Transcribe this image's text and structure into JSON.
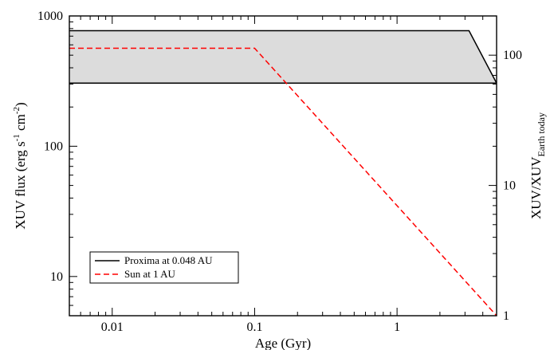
{
  "chart_data": {
    "type": "line",
    "xlabel": "Age (Gyr)",
    "ylabel": {
      "base": "XUV flux (erg s",
      "exp1": "-1",
      "mid": " cm",
      "exp2": "-2",
      "end": ")"
    },
    "ylabel_right": {
      "base": "XUV/XUV",
      "sub": "Earth today"
    },
    "x_scale": "log",
    "y_scale": "log",
    "xlim": [
      0.005,
      5
    ],
    "ylim": [
      5,
      1000
    ],
    "ylim_right": [
      1,
      200
    ],
    "x_ticks": [
      {
        "value": 0.01,
        "label": "0.01"
      },
      {
        "value": 0.1,
        "label": "0.1"
      },
      {
        "value": 1,
        "label": "1"
      }
    ],
    "y_ticks": [
      {
        "value": 10,
        "label": "10"
      },
      {
        "value": 100,
        "label": "100"
      },
      {
        "value": 1000,
        "label": "1000"
      }
    ],
    "y_ticks_right": [
      {
        "value": 1,
        "label": "1"
      },
      {
        "value": 10,
        "label": "10"
      },
      {
        "value": 100,
        "label": "100"
      }
    ],
    "grid": false,
    "legend_position": "bottom-left",
    "series": [
      {
        "name": "Proxima at 0.048 AU",
        "style": "solid",
        "color": "#000000",
        "upper": {
          "x": [
            0.005,
            3.2,
            5
          ],
          "y": [
            770,
            770,
            305
          ]
        },
        "lower": {
          "x": [
            0.005,
            5
          ],
          "y": [
            305,
            305
          ]
        },
        "fill_color": "#dcdcdc"
      },
      {
        "name": "Sun at 1 AU",
        "style": "dashed",
        "color": "#ff0000",
        "x": [
          0.005,
          0.1,
          5
        ],
        "y": [
          565,
          565,
          5
        ]
      }
    ]
  }
}
